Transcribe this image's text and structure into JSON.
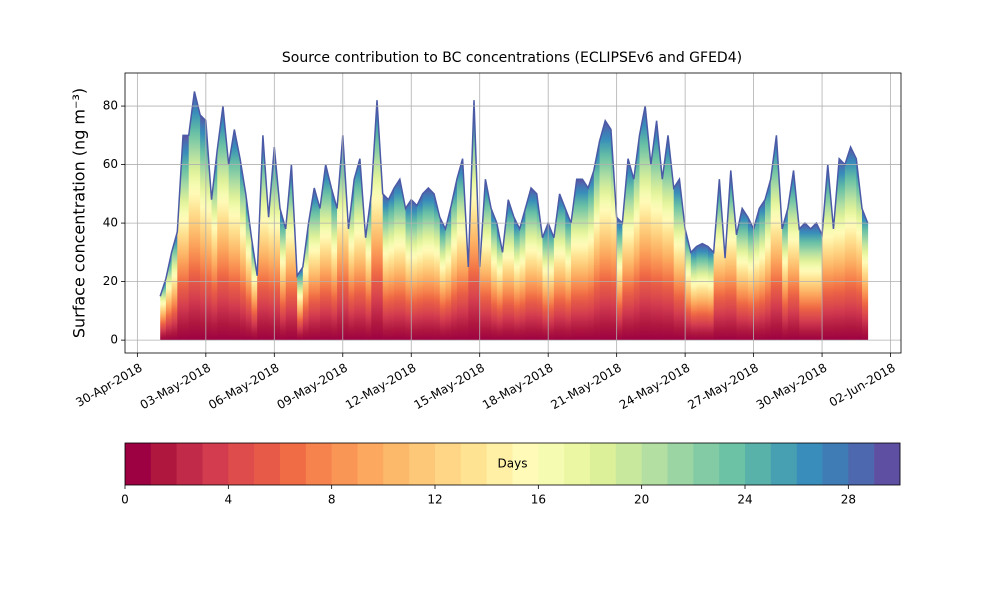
{
  "chart_data": {
    "type": "area",
    "title": "Source contribution to BC concentrations (ECLIPSEv6 and GFED4)",
    "y_label": "Surface concentration (ng m⁻³)",
    "x": [
      "2018-05-01 00:00",
      "2018-05-01 06:00",
      "2018-05-01 12:00",
      "2018-05-01 18:00",
      "2018-05-02 00:00",
      "2018-05-02 06:00",
      "2018-05-02 12:00",
      "2018-05-02 18:00",
      "2018-05-03 00:00",
      "2018-05-03 06:00",
      "2018-05-03 12:00",
      "2018-05-03 18:00",
      "2018-05-04 00:00",
      "2018-05-04 06:00",
      "2018-05-04 12:00",
      "2018-05-04 18:00",
      "2018-05-05 00:00",
      "2018-05-05 06:00",
      "2018-05-05 12:00",
      "2018-05-05 18:00",
      "2018-05-06 00:00",
      "2018-05-06 06:00",
      "2018-05-06 12:00",
      "2018-05-06 18:00",
      "2018-05-07 00:00",
      "2018-05-07 06:00",
      "2018-05-07 12:00",
      "2018-05-07 18:00",
      "2018-05-08 00:00",
      "2018-05-08 06:00",
      "2018-05-08 12:00",
      "2018-05-08 18:00",
      "2018-05-09 00:00",
      "2018-05-09 06:00",
      "2018-05-09 12:00",
      "2018-05-09 18:00",
      "2018-05-10 00:00",
      "2018-05-10 06:00",
      "2018-05-10 12:00",
      "2018-05-10 18:00",
      "2018-05-11 00:00",
      "2018-05-11 06:00",
      "2018-05-11 12:00",
      "2018-05-11 18:00",
      "2018-05-12 00:00",
      "2018-05-12 06:00",
      "2018-05-12 12:00",
      "2018-05-12 18:00",
      "2018-05-13 00:00",
      "2018-05-13 06:00",
      "2018-05-13 12:00",
      "2018-05-13 18:00",
      "2018-05-14 00:00",
      "2018-05-14 06:00",
      "2018-05-14 12:00",
      "2018-05-14 18:00",
      "2018-05-15 00:00",
      "2018-05-15 06:00",
      "2018-05-15 12:00",
      "2018-05-15 18:00",
      "2018-05-16 00:00",
      "2018-05-16 06:00",
      "2018-05-16 12:00",
      "2018-05-16 18:00",
      "2018-05-17 00:00",
      "2018-05-17 06:00",
      "2018-05-17 12:00",
      "2018-05-17 18:00",
      "2018-05-18 00:00",
      "2018-05-18 06:00",
      "2018-05-18 12:00",
      "2018-05-18 18:00",
      "2018-05-19 00:00",
      "2018-05-19 06:00",
      "2018-05-19 12:00",
      "2018-05-19 18:00",
      "2018-05-20 00:00",
      "2018-05-20 06:00",
      "2018-05-20 12:00",
      "2018-05-20 18:00",
      "2018-05-21 00:00",
      "2018-05-21 06:00",
      "2018-05-21 12:00",
      "2018-05-21 18:00",
      "2018-05-22 00:00",
      "2018-05-22 06:00",
      "2018-05-22 12:00",
      "2018-05-22 18:00",
      "2018-05-23 00:00",
      "2018-05-23 06:00",
      "2018-05-23 12:00",
      "2018-05-23 18:00",
      "2018-05-24 00:00",
      "2018-05-24 06:00",
      "2018-05-24 12:00",
      "2018-05-24 18:00",
      "2018-05-25 00:00",
      "2018-05-25 06:00",
      "2018-05-25 12:00",
      "2018-05-25 18:00",
      "2018-05-26 00:00",
      "2018-05-26 06:00",
      "2018-05-26 12:00",
      "2018-05-26 18:00",
      "2018-05-27 00:00",
      "2018-05-27 06:00",
      "2018-05-27 12:00",
      "2018-05-27 18:00",
      "2018-05-28 00:00",
      "2018-05-28 06:00",
      "2018-05-28 12:00",
      "2018-05-28 18:00",
      "2018-05-29 00:00",
      "2018-05-29 06:00",
      "2018-05-29 12:00",
      "2018-05-29 18:00",
      "2018-05-30 00:00",
      "2018-05-30 06:00",
      "2018-05-30 12:00",
      "2018-05-30 18:00",
      "2018-05-31 00:00",
      "2018-05-31 06:00",
      "2018-05-31 12:00",
      "2018-05-31 18:00",
      "2018-06-01 00:00"
    ],
    "values": [
      15,
      21,
      30,
      37,
      70,
      70,
      85,
      77,
      75,
      48,
      65,
      80,
      60,
      72,
      62,
      50,
      35,
      22,
      70,
      42,
      66,
      45,
      38,
      60,
      22,
      25,
      40,
      52,
      45,
      60,
      52,
      45,
      70,
      38,
      55,
      62,
      35,
      50,
      82,
      50,
      48,
      52,
      55,
      45,
      48,
      46,
      50,
      52,
      50,
      42,
      38,
      46,
      55,
      62,
      25,
      82,
      25,
      55,
      45,
      40,
      30,
      48,
      42,
      38,
      45,
      52,
      50,
      35,
      40,
      35,
      50,
      45,
      40,
      55,
      55,
      52,
      58,
      68,
      75,
      72,
      42,
      40,
      62,
      55,
      70,
      80,
      60,
      75,
      55,
      70,
      52,
      55,
      38,
      30,
      32,
      33,
      32,
      30,
      55,
      28,
      58,
      36,
      45,
      42,
      38,
      45,
      48,
      55,
      70,
      38,
      45,
      58,
      38,
      40,
      38,
      40,
      36,
      60,
      38,
      62,
      60,
      66,
      62,
      45,
      40
    ],
    "outline_color": "#4b5aa6",
    "xlim": [
      "2018-04-29 11:00",
      "2018-06-02 11:00"
    ],
    "xticks": [
      {
        "value": "2018-04-30 00:00",
        "label": "30-Apr-2018"
      },
      {
        "value": "2018-05-03 00:00",
        "label": "03-May-2018"
      },
      {
        "value": "2018-05-06 00:00",
        "label": "06-May-2018"
      },
      {
        "value": "2018-05-09 00:00",
        "label": "09-May-2018"
      },
      {
        "value": "2018-05-12 00:00",
        "label": "12-May-2018"
      },
      {
        "value": "2018-05-15 00:00",
        "label": "15-May-2018"
      },
      {
        "value": "2018-05-18 00:00",
        "label": "18-May-2018"
      },
      {
        "value": "2018-05-21 00:00",
        "label": "21-May-2018"
      },
      {
        "value": "2018-05-24 00:00",
        "label": "24-May-2018"
      },
      {
        "value": "2018-05-27 00:00",
        "label": "27-May-2018"
      },
      {
        "value": "2018-05-30 00:00",
        "label": "30-May-2018"
      },
      {
        "value": "2018-06-02 00:00",
        "label": "02-Jun-2018"
      }
    ],
    "ylim": [
      -4.4,
      91.3
    ],
    "yticks": [
      0,
      20,
      40,
      60,
      80
    ],
    "grid": true,
    "colorbar": {
      "label": "Days",
      "levels": [
        0,
        1,
        2,
        3,
        4,
        5,
        6,
        7,
        8,
        9,
        10,
        11,
        12,
        13,
        14,
        15,
        16,
        17,
        18,
        19,
        20,
        21,
        22,
        23,
        24,
        25,
        26,
        27,
        28,
        29,
        30
      ],
      "ticks": [
        0,
        4,
        8,
        12,
        16,
        20,
        24,
        28
      ],
      "colors": [
        "#9e0142",
        "#b0173f",
        "#c22a4a",
        "#d33c4e",
        "#de4d4b",
        "#e65a47",
        "#f06c45",
        "#f6824d",
        "#f99555",
        "#fca85e",
        "#fdb96a",
        "#fdc877",
        "#fed685",
        "#fee393",
        "#fff0a6",
        "#fffab7",
        "#f6fbb2",
        "#ebf7a3",
        "#dcf09a",
        "#c8e89d",
        "#b3dfa2",
        "#9bd5a4",
        "#82cba5",
        "#6cc2a5",
        "#59b2a9",
        "#47a0b1",
        "#388dba",
        "#3f7cb6",
        "#4d68ae",
        "#5e4fa2"
      ]
    }
  }
}
